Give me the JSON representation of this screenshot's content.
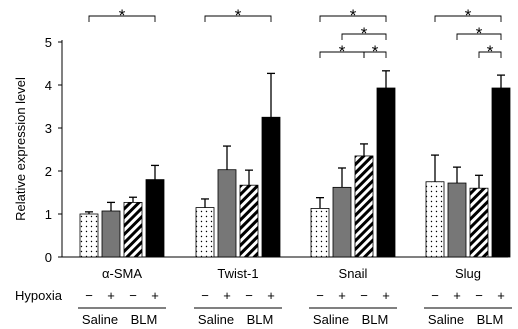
{
  "chart_data": {
    "type": "bar",
    "ylabel": "Relative expression level",
    "ylim": [
      0,
      5
    ],
    "yticks": [
      0,
      1,
      2,
      3,
      4,
      5
    ],
    "row_label": "Hypoxia",
    "categories": [
      "α-SMA",
      "Twist-1",
      "Snail",
      "Slug"
    ],
    "series": [
      {
        "condition": "Saline Hypoxia−",
        "hypoxia": "−",
        "treatment": "Saline",
        "pattern": "dots",
        "values": [
          1.0,
          1.15,
          1.13,
          1.75
        ],
        "errors": [
          0.05,
          0.2,
          0.25,
          0.62
        ]
      },
      {
        "condition": "Saline Hypoxia+",
        "hypoxia": "+",
        "treatment": "Saline",
        "pattern": "gray",
        "values": [
          1.07,
          2.03,
          1.62,
          1.72
        ],
        "errors": [
          0.2,
          0.55,
          0.45,
          0.37
        ]
      },
      {
        "condition": "BLM Hypoxia−",
        "hypoxia": "−",
        "treatment": "BLM",
        "pattern": "stripes",
        "values": [
          1.27,
          1.67,
          2.35,
          1.6
        ],
        "errors": [
          0.12,
          0.35,
          0.28,
          0.3
        ]
      },
      {
        "condition": "BLM Hypoxia+",
        "hypoxia": "+",
        "treatment": "BLM",
        "pattern": "black",
        "values": [
          1.8,
          3.25,
          3.93,
          3.93
        ],
        "errors": [
          0.33,
          1.02,
          0.4,
          0.3
        ]
      }
    ],
    "significance": [
      {
        "group": 0,
        "from": 0,
        "to": 3,
        "level": 0,
        "label": "*"
      },
      {
        "group": 1,
        "from": 0,
        "to": 3,
        "level": 0,
        "label": "*"
      },
      {
        "group": 2,
        "from": 0,
        "to": 3,
        "level": 0,
        "label": "*"
      },
      {
        "group": 2,
        "from": 1,
        "to": 3,
        "level": 1,
        "label": "*"
      },
      {
        "group": 2,
        "from": 0,
        "to": 2,
        "level": 2,
        "label": "*"
      },
      {
        "group": 2,
        "from": 2,
        "to": 3,
        "level": 2,
        "label": "*"
      },
      {
        "group": 3,
        "from": 0,
        "to": 3,
        "level": 0,
        "label": "*"
      },
      {
        "group": 3,
        "from": 1,
        "to": 3,
        "level": 1,
        "label": "*"
      },
      {
        "group": 3,
        "from": 2,
        "to": 3,
        "level": 2,
        "label": "*"
      }
    ]
  },
  "group_labels": {
    "saline": "Saline",
    "blm": "BLM"
  },
  "colors": {
    "gray_bar": "#777777",
    "black_bar": "#000000",
    "axis": "#000000"
  }
}
